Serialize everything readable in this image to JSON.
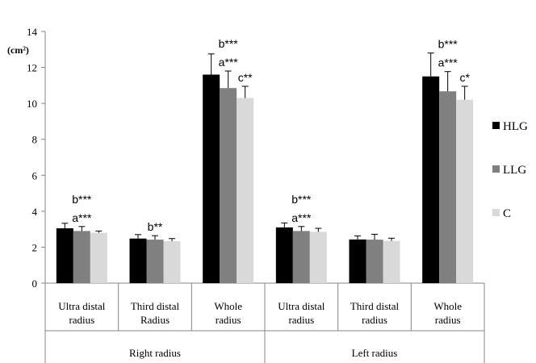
{
  "chart_data": {
    "type": "bar",
    "y_unit": "(cm²)",
    "ylim": [
      0,
      14
    ],
    "yticks": [
      0,
      2,
      4,
      6,
      8,
      10,
      12,
      14
    ],
    "grid": false,
    "legend_position": "right",
    "categories": [
      [
        "Ultra distal",
        "radius"
      ],
      [
        "Third distal",
        "Radius"
      ],
      [
        "Whole",
        "radius"
      ],
      [
        "Ultra distal",
        "radius"
      ],
      [
        "Third distal",
        "radius"
      ],
      [
        "Whole",
        "radius"
      ]
    ],
    "groups": [
      {
        "label": "Right radius",
        "categories": [
          0,
          1,
          2
        ]
      },
      {
        "label": "Left radius",
        "categories": [
          3,
          4,
          5
        ]
      }
    ],
    "series": [
      {
        "name": "HLG",
        "color": "#000000",
        "values": [
          3.05,
          2.48,
          11.6,
          3.1,
          2.43,
          11.5
        ],
        "errors": [
          0.28,
          0.22,
          1.15,
          0.25,
          0.2,
          1.3
        ]
      },
      {
        "name": "LLG",
        "color": "#808080",
        "values": [
          2.9,
          2.42,
          10.85,
          2.9,
          2.42,
          10.67
        ],
        "errors": [
          0.25,
          0.22,
          0.95,
          0.25,
          0.3,
          1.1
        ]
      },
      {
        "name": "C",
        "color": "#d9d9d9",
        "values": [
          2.8,
          2.33,
          10.3,
          2.85,
          2.35,
          10.2
        ],
        "errors": [
          0.1,
          0.15,
          0.65,
          0.2,
          0.15,
          0.75
        ]
      }
    ],
    "annotations": [
      {
        "category": 0,
        "series": 1,
        "lines": [
          "b***",
          "a***"
        ]
      },
      {
        "category": 1,
        "series": 1,
        "lines": [
          "b**"
        ]
      },
      {
        "category": 2,
        "series": 1,
        "lines": [
          "b***",
          "a***"
        ]
      },
      {
        "category": 2,
        "series": 2,
        "lines": [
          "c**"
        ]
      },
      {
        "category": 3,
        "series": 1,
        "lines": [
          "b***",
          "a***"
        ]
      },
      {
        "category": 5,
        "series": 1,
        "lines": [
          "b***",
          "a***"
        ]
      },
      {
        "category": 5,
        "series": 2,
        "lines": [
          "c*"
        ]
      }
    ]
  }
}
